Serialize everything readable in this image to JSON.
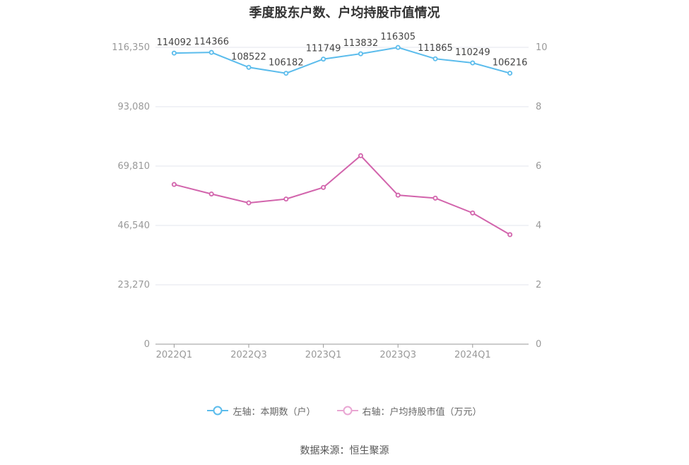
{
  "title": "季度股东户数、户均持股市值情况",
  "source": "数据来源：恒生聚源",
  "colors": {
    "left_series": "#5bbcec",
    "right_series": "#d264ac",
    "right_series_legend": "#e9a6d3",
    "grid": "#e3e6ee",
    "axis": "#999999"
  },
  "legend": [
    {
      "label": "左轴：本期数（户）",
      "color": "#5bbcec"
    },
    {
      "label": "右轴：户均持股市值（万元）",
      "color": "#e9a6d3"
    }
  ],
  "chart_data": {
    "type": "line",
    "title": "季度股东户数、户均持股市值情况",
    "categories": [
      "2022Q1",
      "2022Q2",
      "2022Q3",
      "2022Q4",
      "2023Q1",
      "2023Q2",
      "2023Q3",
      "2023Q4",
      "2024Q1",
      "2024Q2"
    ],
    "x_tick_labels": [
      "2022Q1",
      "2022Q3",
      "2023Q1",
      "2023Q3",
      "2024Q1"
    ],
    "left_axis": {
      "ticks": [
        "0",
        "23,270",
        "46,540",
        "69,810",
        "93,080",
        "116,350"
      ],
      "ylim": [
        0,
        116350
      ]
    },
    "right_axis": {
      "ticks": [
        "0",
        "2",
        "4",
        "6",
        "8",
        "10"
      ],
      "ylim": [
        0,
        10
      ]
    },
    "grid": true,
    "legend_position": "bottom",
    "series": [
      {
        "name": "左轴：本期数（户）",
        "axis": "left",
        "values": [
          114092,
          114366,
          108522,
          106182,
          111749,
          113832,
          116305,
          111865,
          110249,
          106216
        ],
        "data_labels": [
          "114092",
          "114366",
          "108522",
          "106182",
          "111749",
          "113832",
          "116305",
          "111865",
          "110249",
          "106216"
        ]
      },
      {
        "name": "右轴：户均持股市值（万元）",
        "axis": "right",
        "values": [
          5.38,
          5.06,
          4.76,
          4.89,
          5.28,
          6.35,
          5.02,
          4.92,
          4.42,
          3.69
        ]
      }
    ]
  }
}
